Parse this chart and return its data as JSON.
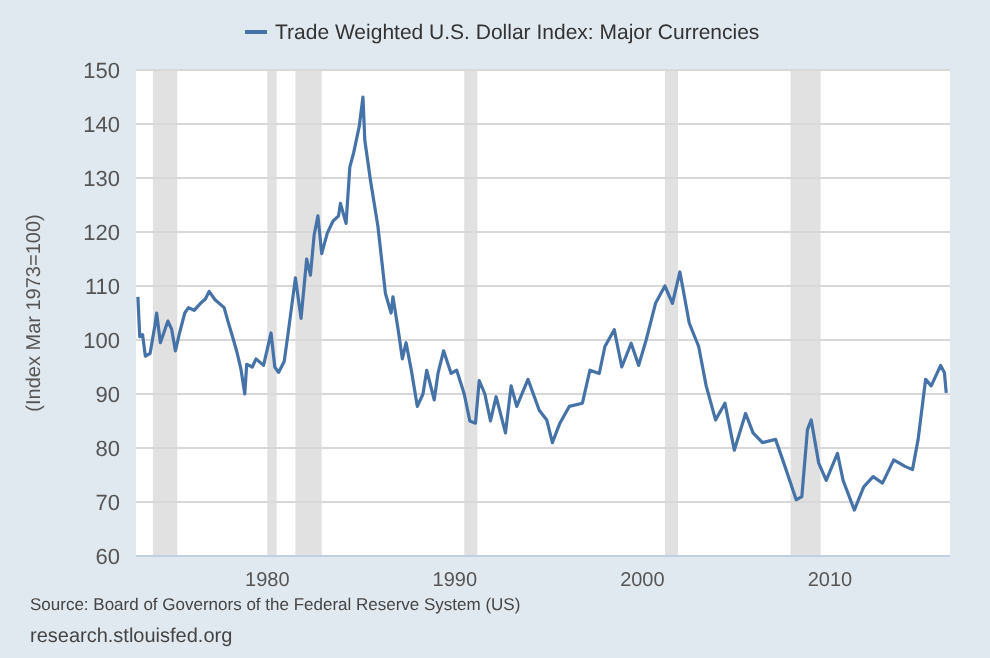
{
  "chart_data": {
    "type": "line",
    "ylabel": "(Index Mar 1973=100)",
    "xlim": [
      1973.0,
      2016.4
    ],
    "xticks": [
      1980,
      1990,
      2000,
      2010
    ],
    "ylim": [
      60,
      150
    ],
    "yticks": [
      60,
      70,
      80,
      90,
      100,
      110,
      120,
      130,
      140,
      150
    ],
    "grid": "y",
    "legend": "top",
    "series": [
      {
        "name": "Trade Weighted U.S. Dollar Index: Major Currencies",
        "color": "#4572a7",
        "x": [
          1973.1,
          1973.2,
          1973.35,
          1973.5,
          1973.75,
          1974.0,
          1974.1,
          1974.3,
          1974.7,
          1974.9,
          1975.1,
          1975.3,
          1975.6,
          1975.8,
          1976.1,
          1976.5,
          1976.7,
          1976.9,
          1977.2,
          1977.7,
          1977.9,
          1978.2,
          1978.4,
          1978.6,
          1978.8,
          1978.9,
          1979.2,
          1979.4,
          1979.8,
          1980.2,
          1980.4,
          1980.6,
          1980.9,
          1981.1,
          1981.5,
          1981.8,
          1982.1,
          1982.3,
          1982.5,
          1982.7,
          1982.9,
          1983.2,
          1983.5,
          1983.8,
          1983.9,
          1984.2,
          1984.4,
          1984.6,
          1984.9,
          1985.1,
          1985.2,
          1985.5,
          1985.9,
          1986.1,
          1986.3,
          1986.6,
          1986.7,
          1987.0,
          1987.2,
          1987.4,
          1987.7,
          1988.0,
          1988.3,
          1988.5,
          1988.9,
          1989.1,
          1989.4,
          1989.8,
          1990.1,
          1990.5,
          1990.8,
          1991.1,
          1991.3,
          1991.6,
          1991.9,
          1992.2,
          1992.7,
          1993.0,
          1993.3,
          1993.9,
          1994.5,
          1994.9,
          1995.2,
          1995.6,
          1996.1,
          1996.8,
          1997.2,
          1997.7,
          1998.0,
          1998.5,
          1998.9,
          1999.4,
          1999.8,
          2000.2,
          2000.7,
          2001.2,
          2001.6,
          2002.0,
          2002.5,
          2003.0,
          2003.4,
          2003.9,
          2004.4,
          2004.9,
          2005.5,
          2005.9,
          2006.4,
          2007.1,
          2007.6,
          2008.2,
          2008.5,
          2008.8,
          2009.0,
          2009.4,
          2009.8,
          2010.4,
          2010.7,
          2011.3,
          2011.8,
          2012.3,
          2012.8,
          2013.4,
          2014.0,
          2014.4,
          2014.7,
          2015.1,
          2015.4,
          2015.9,
          2016.1,
          2016.2
        ],
        "values": [
          108,
          100.6,
          101,
          97,
          97.5,
          102.5,
          105,
          99.5,
          103.5,
          102,
          98,
          101,
          105,
          106,
          105.5,
          107,
          107.6,
          109,
          107.5,
          106,
          103.5,
          100,
          97.5,
          94.5,
          90,
          95.5,
          95,
          96.5,
          95.3,
          101.3,
          95,
          94,
          96,
          101,
          111.5,
          104,
          115,
          112,
          119.5,
          123,
          116,
          119.8,
          122,
          123,
          125.3,
          121.6,
          132,
          134.6,
          139.5,
          145,
          137,
          129.6,
          121,
          114.8,
          108.6,
          105,
          108,
          101.4,
          96.5,
          99.5,
          94,
          87.7,
          90,
          94.4,
          88.9,
          93.8,
          98,
          93.8,
          94.4,
          90,
          85,
          84.6,
          92.5,
          90,
          85,
          89.5,
          82.8,
          91.5,
          87.7,
          92.7,
          87,
          85.2,
          81,
          84.6,
          87.7,
          88.3,
          94.4,
          93.8,
          98.8,
          101.9,
          95,
          99.4,
          95.3,
          100,
          106.8,
          110,
          106.8,
          112.6,
          103.1,
          98.8,
          91.5,
          85.2,
          88.3,
          79.6,
          86.4,
          82.8,
          81,
          81.6,
          76.6,
          70.4,
          71,
          83.4,
          85.2,
          77.2,
          74,
          79,
          74,
          68.5,
          72.8,
          74.7,
          73.5,
          77.8,
          76.6,
          76,
          81.6,
          92.7,
          91.5,
          95.3,
          94,
          90.2
        ]
      }
    ],
    "bands": [
      {
        "axis": "x",
        "from": 1973.9,
        "to": 1975.2,
        "color": "#e1e1e1"
      },
      {
        "axis": "x",
        "from": 1980.0,
        "to": 1980.5,
        "color": "#e1e1e1"
      },
      {
        "axis": "x",
        "from": 1981.5,
        "to": 1982.9,
        "color": "#e1e1e1"
      },
      {
        "axis": "x",
        "from": 1990.5,
        "to": 1991.2,
        "color": "#e1e1e1"
      },
      {
        "axis": "x",
        "from": 2001.2,
        "to": 2001.9,
        "color": "#e1e1e1"
      },
      {
        "axis": "x",
        "from": 2007.9,
        "to": 2009.5,
        "color": "#e1e1e1"
      }
    ],
    "annotations": [
      "Source: Board of Governors of the Federal Reserve System (US)",
      "research.stlouisfed.org"
    ]
  }
}
